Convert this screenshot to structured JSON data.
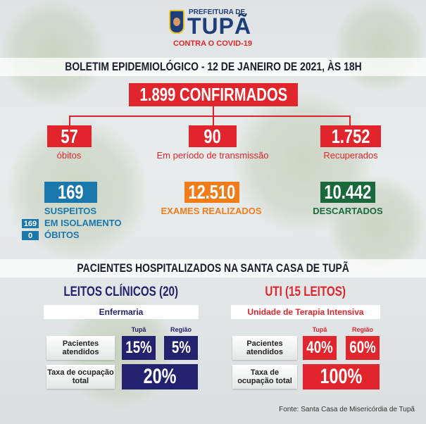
{
  "header": {
    "logo_top": "PREFEITURA DE",
    "logo_city": "TUPÃ",
    "logo_sub": "CONTRA O COVID-19"
  },
  "title": "BOLETIM EPIDEMIOLÓGICO - 12 DE JANEIRO DE 2021, ÀS 18H",
  "confirmed": "1.899 CONFIRMADOS",
  "stats": [
    {
      "value": "57",
      "label": "óbitos"
    },
    {
      "value": "90",
      "label": "Em período de transmissão"
    },
    {
      "value": "1.752",
      "label": "Recuperados"
    }
  ],
  "suspects": {
    "value": "169",
    "label": "SUSPEITOS",
    "isolation_value": "169",
    "isolation_label": "EM ISOLAMENTO",
    "deaths_value": "0",
    "deaths_label": "ÓBITOS"
  },
  "exams": {
    "value": "12.510",
    "label": "EXAMES REALIZADOS"
  },
  "discarded": {
    "value": "10.442",
    "label": "DESCARTADOS"
  },
  "hospital_title": "PACIENTES HOSPITALIZADOS NA SANTA CASA DE TUPÃ",
  "clinical": {
    "title": "LEITOS CLÍNICOS (20)",
    "subtitle": "Enfermaria",
    "col1": "Tupã",
    "col2": "Região",
    "row1_label": "Pacientes atendidos",
    "row1_v1": "15%",
    "row1_v2": "5%",
    "row2_label": "Taxa de ocupação total",
    "row2_value": "20%"
  },
  "icu": {
    "title": "UTI (15 LEITOS)",
    "subtitle": "Unidade de Terapia Intensiva",
    "col1": "Tupã",
    "col2": "Região",
    "row1_label": "Pacientes atendidos",
    "row1_v1": "40%",
    "row1_v2": "60%",
    "row2_label": "Taxa de ocupação total",
    "row2_value": "100%"
  },
  "source": "Fonte: Santa Casa de Misericórdia de Tupã",
  "colors": {
    "red": "#e0262c",
    "blue": "#1b78ad",
    "orange": "#f07d1a",
    "green": "#19693c",
    "navy": "#22226e"
  }
}
